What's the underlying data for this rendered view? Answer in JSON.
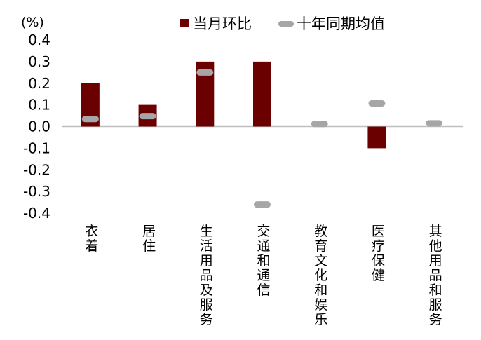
{
  "chart_data": {
    "type": "bar",
    "unit_label": "(%)",
    "categories": [
      "衣着",
      "居住",
      "生活用品及服务",
      "交通和通信",
      "教育文化和娱乐",
      "医疗保健",
      "其他用品和服务"
    ],
    "series": [
      {
        "name": "当月环比",
        "type": "bar",
        "color": "#6b0000",
        "values": [
          0.2,
          0.1,
          0.3,
          0.3,
          0.0,
          -0.1,
          0.0
        ]
      },
      {
        "name": "十年同期均值",
        "type": "marker",
        "color": "#a6a6a6",
        "values": [
          0.035,
          0.048,
          0.25,
          -0.36,
          0.012,
          0.107,
          0.015
        ]
      }
    ],
    "y_ticks": [
      "0.4",
      "0.3",
      "0.2",
      "0.1",
      "0.0",
      "-0.1",
      "-0.2",
      "-0.3",
      "-0.4"
    ],
    "ylim": [
      -0.4,
      0.4
    ],
    "grid": false,
    "legend_position": "top"
  }
}
